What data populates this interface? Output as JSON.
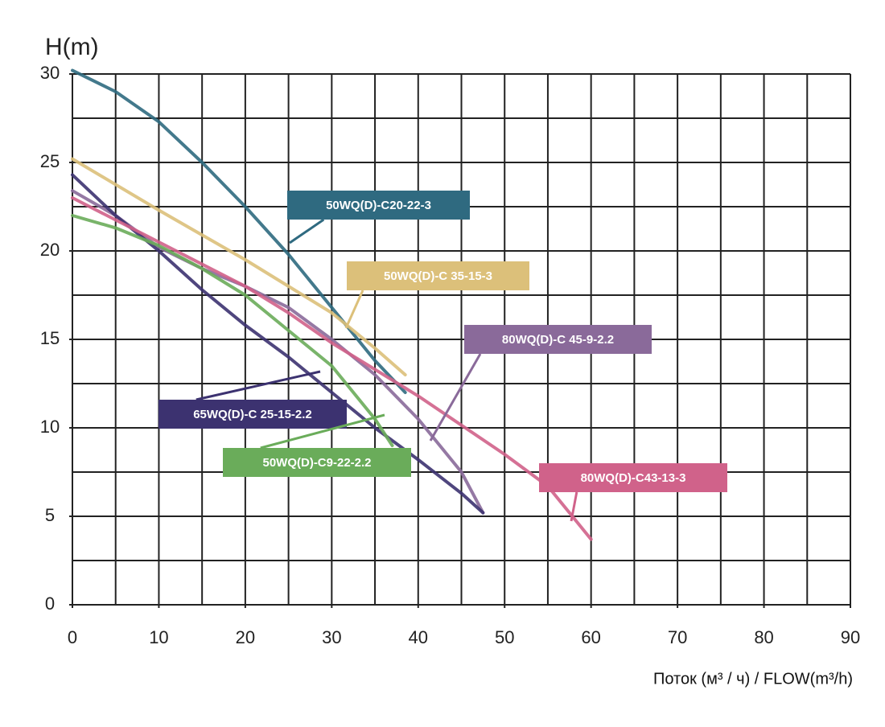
{
  "chart_data": {
    "type": "line",
    "y_label": "H(m)",
    "x_label": "Поток (м³ / ч) / FLOW(m³/h)",
    "xlim": [
      0,
      90
    ],
    "xticks": [
      0,
      10,
      20,
      30,
      40,
      50,
      60,
      70,
      80,
      90
    ],
    "ylim": [
      0,
      30
    ],
    "yticks": [
      0,
      5,
      10,
      15,
      20,
      25,
      30
    ],
    "grid": {
      "x_step": 5,
      "y_step": 2.5
    },
    "series": [
      {
        "name": "50WQ(D)-C20-22-3",
        "color": "#2f6a80",
        "x": [
          0,
          5,
          10,
          15,
          20,
          25,
          30,
          35,
          38.5
        ],
        "values": [
          30.2,
          29,
          27.3,
          25,
          22.5,
          19.8,
          16.8,
          13.8,
          12
        ]
      },
      {
        "name": "50WQ(D)-C 35-15-3",
        "color": "#dcc07a",
        "x": [
          0,
          10,
          20,
          30,
          35,
          38.5
        ],
        "values": [
          25.2,
          22.3,
          19.5,
          16.5,
          14.5,
          13
        ]
      },
      {
        "name": "80WQ(D)-C 45-9-2.2",
        "color": "#8a6a9a",
        "x": [
          0,
          5,
          10,
          15,
          20,
          25,
          30,
          35,
          40,
          45,
          47.5
        ],
        "values": [
          23.4,
          22,
          20.2,
          19,
          18,
          16.8,
          15,
          13,
          10.5,
          7.5,
          5.2
        ]
      },
      {
        "name": "65WQ(D)-C 25-15-2.2",
        "color": "#3c3270",
        "x": [
          0,
          5,
          10,
          15,
          20,
          25,
          30,
          35,
          40,
          45,
          47.5
        ],
        "values": [
          24.3,
          22,
          20,
          17.8,
          15.8,
          14,
          12,
          10,
          8.2,
          6.3,
          5.2
        ]
      },
      {
        "name": "50WQ(D)-C9-22-2.2",
        "color": "#6aac5a",
        "x": [
          0,
          5,
          10,
          15,
          20,
          25,
          30,
          35,
          37
        ],
        "values": [
          22,
          21.3,
          20.3,
          19,
          17.5,
          15.5,
          13.5,
          10.5,
          9
        ]
      },
      {
        "name": "80WQ(D)-C43-13-3",
        "color": "#d0628a",
        "x": [
          0,
          10,
          20,
          25,
          30,
          40,
          50,
          55,
          60
        ],
        "values": [
          23,
          20.5,
          18,
          16.5,
          14.8,
          11.8,
          8.5,
          6.7,
          3.7
        ]
      }
    ]
  }
}
